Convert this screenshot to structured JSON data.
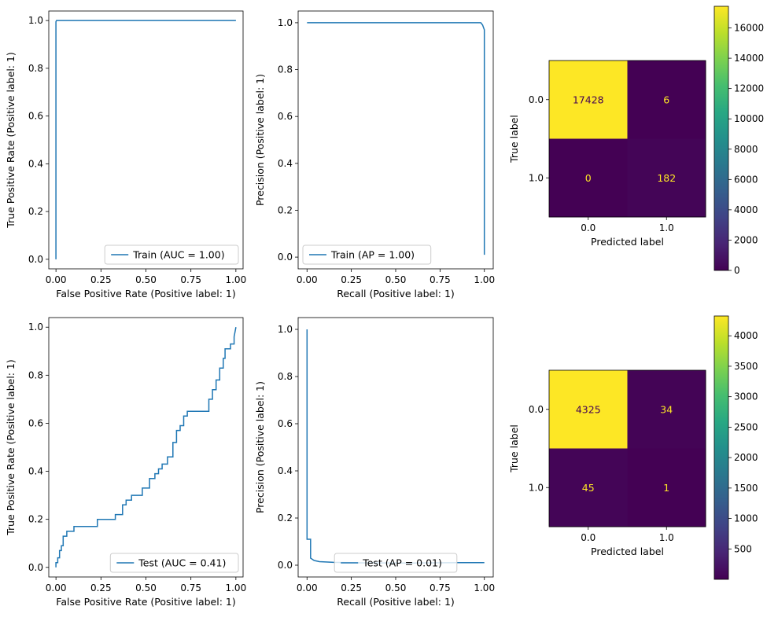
{
  "figure": {
    "background": "#ffffff",
    "line_color": "#1f77b4"
  },
  "chart_data": [
    {
      "type": "line",
      "id": "train-roc",
      "xlabel": "False Positive Rate (Positive label: 1)",
      "ylabel": "True Positive Rate (Positive label: 1)",
      "xlim": [
        -0.04,
        1.04
      ],
      "ylim": [
        -0.04,
        1.04
      ],
      "xticks": [
        0,
        0.25,
        0.5,
        0.75,
        1.0
      ],
      "xticklabels": [
        "0.00",
        "0.25",
        "0.50",
        "0.75",
        "1.00"
      ],
      "yticks": [
        0,
        0.2,
        0.4,
        0.6,
        0.8,
        1.0
      ],
      "yticklabels": [
        "0.0",
        "0.2",
        "0.4",
        "0.6",
        "0.8",
        "1.0"
      ],
      "legend": "lower-right",
      "series": [
        {
          "name": "Train (AUC = 1.00)",
          "color": "#1f77b4",
          "x": [
            0,
            0,
            0.003,
            1.0
          ],
          "y": [
            0,
            0.995,
            1.0,
            1.0
          ]
        }
      ]
    },
    {
      "type": "line",
      "id": "train-pr",
      "xlabel": "Recall (Positive label: 1)",
      "ylabel": "Precision (Positive label: 1)",
      "xlim": [
        -0.05,
        1.05
      ],
      "ylim": [
        -0.05,
        1.05
      ],
      "xticks": [
        0,
        0.25,
        0.5,
        0.75,
        1.0
      ],
      "xticklabels": [
        "0.00",
        "0.25",
        "0.50",
        "0.75",
        "1.00"
      ],
      "yticks": [
        0,
        0.2,
        0.4,
        0.6,
        0.8,
        1.0
      ],
      "yticklabels": [
        "0.0",
        "0.2",
        "0.4",
        "0.6",
        "0.8",
        "1.0"
      ],
      "legend": "lower-left",
      "series": [
        {
          "name": "Train (AP = 1.00)",
          "color": "#1f77b4",
          "x": [
            0,
            0.98,
            0.99,
            1.0,
            1.0,
            1.0
          ],
          "y": [
            1.0,
            1.0,
            0.99,
            0.97,
            0.5,
            0.01
          ]
        }
      ]
    },
    {
      "type": "heatmap",
      "id": "train-cm",
      "xlabel": "Predicted label",
      "ylabel": "True label",
      "categories": [
        "0.0",
        "1.0"
      ],
      "values": [
        [
          17428,
          6
        ],
        [
          0,
          182
        ]
      ],
      "colormap": "viridis",
      "colorbar": {
        "range": [
          0,
          17428
        ],
        "ticks": [
          0,
          2000,
          4000,
          6000,
          8000,
          10000,
          12000,
          14000,
          16000
        ],
        "ticklabels": [
          "0",
          "2000",
          "4000",
          "6000",
          "8000",
          "10000",
          "12000",
          "14000",
          "16000"
        ]
      }
    },
    {
      "type": "line",
      "id": "test-roc",
      "xlabel": "False Positive Rate (Positive label: 1)",
      "ylabel": "True Positive Rate (Positive label: 1)",
      "xlim": [
        -0.04,
        1.04
      ],
      "ylim": [
        -0.04,
        1.04
      ],
      "xticks": [
        0,
        0.25,
        0.5,
        0.75,
        1.0
      ],
      "xticklabels": [
        "0.00",
        "0.25",
        "0.50",
        "0.75",
        "1.00"
      ],
      "yticks": [
        0,
        0.2,
        0.4,
        0.6,
        0.8,
        1.0
      ],
      "yticklabels": [
        "0.0",
        "0.2",
        "0.4",
        "0.6",
        "0.8",
        "1.0"
      ],
      "legend": "lower-right",
      "series": [
        {
          "name": "Test (AUC = 0.41)",
          "color": "#1f77b4",
          "x": [
            0,
            0,
            0.01,
            0.01,
            0.02,
            0.02,
            0.03,
            0.03,
            0.04,
            0.04,
            0.06,
            0.06,
            0.1,
            0.1,
            0.23,
            0.23,
            0.33,
            0.33,
            0.37,
            0.37,
            0.39,
            0.39,
            0.42,
            0.42,
            0.48,
            0.48,
            0.52,
            0.52,
            0.55,
            0.55,
            0.57,
            0.57,
            0.59,
            0.59,
            0.62,
            0.62,
            0.65,
            0.65,
            0.67,
            0.67,
            0.69,
            0.69,
            0.71,
            0.71,
            0.73,
            0.73,
            0.85,
            0.85,
            0.87,
            0.87,
            0.89,
            0.89,
            0.91,
            0.91,
            0.93,
            0.93,
            0.94,
            0.94,
            0.97,
            0.97,
            0.99,
            0.99,
            1.0
          ],
          "y": [
            0,
            0.02,
            0.02,
            0.04,
            0.04,
            0.07,
            0.07,
            0.09,
            0.09,
            0.13,
            0.13,
            0.15,
            0.15,
            0.17,
            0.17,
            0.2,
            0.2,
            0.22,
            0.22,
            0.26,
            0.26,
            0.28,
            0.28,
            0.3,
            0.3,
            0.33,
            0.33,
            0.37,
            0.37,
            0.39,
            0.39,
            0.41,
            0.41,
            0.43,
            0.43,
            0.46,
            0.46,
            0.52,
            0.52,
            0.57,
            0.57,
            0.59,
            0.59,
            0.63,
            0.63,
            0.65,
            0.65,
            0.7,
            0.7,
            0.74,
            0.74,
            0.78,
            0.78,
            0.83,
            0.83,
            0.87,
            0.87,
            0.91,
            0.91,
            0.93,
            0.93,
            0.96,
            1.0
          ]
        }
      ]
    },
    {
      "type": "line",
      "id": "test-pr",
      "xlabel": "Recall (Positive label: 1)",
      "ylabel": "Precision (Positive label: 1)",
      "xlim": [
        -0.05,
        1.05
      ],
      "ylim": [
        -0.05,
        1.05
      ],
      "xticks": [
        0,
        0.25,
        0.5,
        0.75,
        1.0
      ],
      "xticklabels": [
        "0.00",
        "0.25",
        "0.50",
        "0.75",
        "1.00"
      ],
      "yticks": [
        0,
        0.2,
        0.4,
        0.6,
        0.8,
        1.0
      ],
      "yticklabels": [
        "0.0",
        "0.2",
        "0.4",
        "0.6",
        "0.8",
        "1.0"
      ],
      "legend": "lower-center",
      "series": [
        {
          "name": "Test (AP = 0.01)",
          "color": "#1f77b4",
          "x": [
            1.0,
            0.85,
            0.6,
            0.3,
            0.15,
            0.07,
            0.04,
            0.02,
            0.02,
            0.01,
            0.005,
            0.005,
            0.0,
            0.0
          ],
          "y": [
            0.011,
            0.011,
            0.009,
            0.01,
            0.012,
            0.015,
            0.02,
            0.03,
            0.11,
            0.11,
            0.11,
            0.11,
            0.11,
            1.0
          ]
        }
      ]
    },
    {
      "type": "heatmap",
      "id": "test-cm",
      "xlabel": "Predicted label",
      "ylabel": "True label",
      "categories": [
        "0.0",
        "1.0"
      ],
      "values": [
        [
          4325,
          34
        ],
        [
          45,
          1
        ]
      ],
      "colormap": "viridis",
      "colorbar": {
        "range": [
          1,
          4325
        ],
        "ticks": [
          500,
          1000,
          1500,
          2000,
          2500,
          3000,
          3500,
          4000
        ],
        "ticklabels": [
          "500",
          "1000",
          "1500",
          "2000",
          "2500",
          "3000",
          "3500",
          "4000"
        ]
      }
    }
  ]
}
